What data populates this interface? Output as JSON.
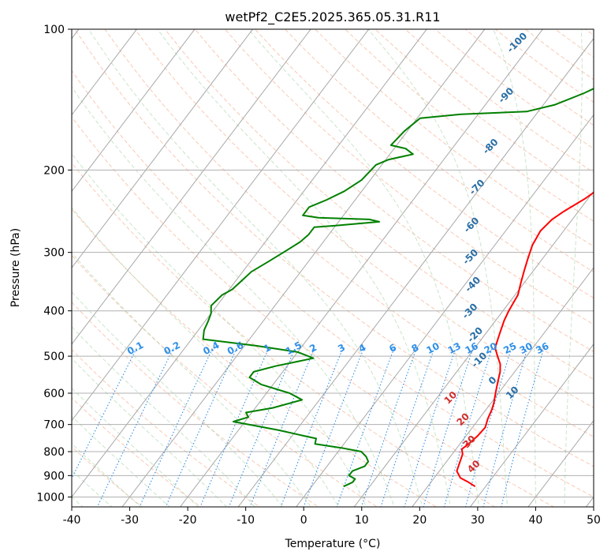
{
  "chart_data": {
    "type": "line",
    "diagram": "skew-T log-P",
    "title": "wetPf2_C2E5.2025.365.05.31.R11",
    "xlabel": "Temperature (°C)",
    "ylabel": "Pressure (hPa)",
    "xlim": [
      -40,
      50
    ],
    "ylim_hpa": [
      1050,
      100
    ],
    "x_ticks": [
      -40,
      -30,
      -20,
      -10,
      0,
      10,
      20,
      30,
      40,
      50
    ],
    "y_ticks": [
      100,
      200,
      300,
      400,
      500,
      600,
      700,
      800,
      900,
      1000
    ],
    "grid": true,
    "series": [
      {
        "name": "temperature",
        "color": "#ff0000",
        "points": [
          [
            28.2,
            950
          ],
          [
            26.5,
            930
          ],
          [
            24.5,
            910
          ],
          [
            23.0,
            880
          ],
          [
            22.5,
            850
          ],
          [
            21.8,
            810
          ],
          [
            21.0,
            790
          ],
          [
            21.5,
            770
          ],
          [
            22.0,
            740
          ],
          [
            22.2,
            710
          ],
          [
            21.5,
            680
          ],
          [
            21.0,
            650
          ],
          [
            20.5,
            630
          ],
          [
            19.5,
            600
          ],
          [
            18.5,
            570
          ],
          [
            17.5,
            540
          ],
          [
            16.5,
            520
          ],
          [
            15.0,
            500
          ],
          [
            13.5,
            480
          ],
          [
            12.5,
            450
          ],
          [
            11.5,
            420
          ],
          [
            11.0,
            400
          ],
          [
            10.5,
            370
          ],
          [
            9.5,
            350
          ],
          [
            8.5,
            330
          ],
          [
            7.5,
            310
          ],
          [
            6.5,
            290
          ],
          [
            6.0,
            270
          ],
          [
            6.5,
            255
          ],
          [
            7.5,
            245
          ],
          [
            9.5,
            230
          ],
          [
            11.0,
            215
          ],
          [
            10.5,
            200
          ],
          [
            9.5,
            185
          ],
          [
            8.5,
            170
          ],
          [
            8.0,
            155
          ],
          [
            7.0,
            140
          ],
          [
            5.5,
            125
          ],
          [
            4.5,
            115
          ],
          [
            4.0,
            108
          ],
          [
            5.0,
            103
          ],
          [
            6.0,
            100
          ]
        ]
      },
      {
        "name": "dewpoint",
        "color": "#008000",
        "points": [
          [
            5.5,
            950
          ],
          [
            6.5,
            930
          ],
          [
            6.5,
            915
          ],
          [
            5.0,
            900
          ],
          [
            5.0,
            880
          ],
          [
            6.5,
            860
          ],
          [
            6.5,
            840
          ],
          [
            5.5,
            820
          ],
          [
            4.0,
            800
          ],
          [
            0.0,
            785
          ],
          [
            -5.0,
            770
          ],
          [
            -5.5,
            750
          ],
          [
            -8.0,
            740
          ],
          [
            -13.0,
            720
          ],
          [
            -22.0,
            690
          ],
          [
            -20.0,
            675
          ],
          [
            -21.0,
            660
          ],
          [
            -17.0,
            645
          ],
          [
            -13.0,
            620
          ],
          [
            -16.0,
            600
          ],
          [
            -22.0,
            575
          ],
          [
            -25.0,
            555
          ],
          [
            -25.0,
            540
          ],
          [
            -22.0,
            525
          ],
          [
            -16.5,
            505
          ],
          [
            -20.0,
            490
          ],
          [
            -28.0,
            475
          ],
          [
            -38.0,
            460
          ],
          [
            -39.0,
            440
          ],
          [
            -39.5,
            420
          ],
          [
            -40.0,
            405
          ],
          [
            -41.0,
            390
          ],
          [
            -40.5,
            370
          ],
          [
            -39.5,
            360
          ],
          [
            -39.0,
            345
          ],
          [
            -38.5,
            330
          ],
          [
            -37.0,
            315
          ],
          [
            -35.5,
            300
          ],
          [
            -34.0,
            285
          ],
          [
            -33.5,
            275
          ],
          [
            -33.5,
            265
          ],
          [
            -30.0,
            263
          ],
          [
            -23.0,
            258
          ],
          [
            -25.0,
            255
          ],
          [
            -34.0,
            253
          ],
          [
            -37.0,
            250
          ],
          [
            -37.0,
            240
          ],
          [
            -35.0,
            232
          ],
          [
            -33.0,
            222
          ],
          [
            -31.5,
            210
          ],
          [
            -31.0,
            195
          ],
          [
            -29.5,
            190
          ],
          [
            -26.0,
            185
          ],
          [
            -28.0,
            180
          ],
          [
            -31.0,
            177
          ],
          [
            -30.5,
            165
          ],
          [
            -29.5,
            155
          ],
          [
            -23.0,
            152
          ],
          [
            -12.0,
            150
          ],
          [
            -8.0,
            145
          ],
          [
            -4.5,
            137
          ],
          [
            -2.0,
            130
          ],
          [
            0.0,
            124
          ],
          [
            1.0,
            116
          ],
          [
            2.0,
            108
          ],
          [
            2.5,
            102
          ],
          [
            3.0,
            100
          ]
        ]
      }
    ],
    "dry_adiabat_labels": [
      "-100",
      "-90",
      "-80",
      "-70",
      "-60",
      "-50",
      "-40",
      "-30",
      "-20",
      "-10",
      "0",
      "10"
    ],
    "moist_adiabat_labels": [
      "10",
      "20",
      "30",
      "40"
    ],
    "mixing_ratio_labels": [
      "0.1",
      "0.2",
      "0.4",
      "0.6",
      "1",
      "1.5",
      "2",
      "3",
      "4",
      "6",
      "8",
      "10",
      "13",
      "16",
      "20",
      "25",
      "30",
      "36"
    ]
  }
}
